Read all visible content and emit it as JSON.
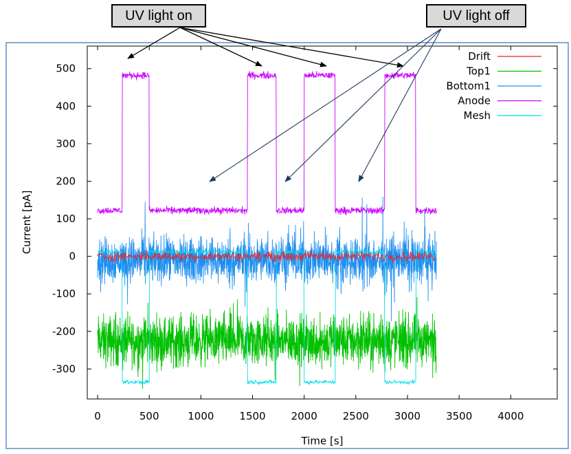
{
  "annotations": {
    "on_label": "UV light on",
    "off_label": "UV light off"
  },
  "chart_data": {
    "type": "line",
    "title": "",
    "xlabel": "Time [s]",
    "ylabel": "Current [pA]",
    "xlim": [
      -100,
      4450
    ],
    "ylim": [
      -380,
      560
    ],
    "xticks": [
      0,
      500,
      1000,
      1500,
      2000,
      2500,
      3000,
      3500,
      4000
    ],
    "yticks": [
      -300,
      -200,
      -100,
      0,
      100,
      200,
      300,
      400,
      500
    ],
    "grid": false,
    "legend_position": "top-right",
    "uv_on_intervals": [
      [
        240,
        500
      ],
      [
        1450,
        1730
      ],
      [
        2000,
        2300
      ],
      [
        2780,
        3080
      ]
    ],
    "series": [
      {
        "name": "Drift",
        "color": "#e8262b",
        "base": 0,
        "on_value": 0,
        "noise": 10,
        "stride": 6
      },
      {
        "name": "Top1",
        "color": "#00c000",
        "base": -225,
        "on_value": -225,
        "noise": 50,
        "stride": 2
      },
      {
        "name": "Bottom1",
        "color": "#1e8ff0",
        "base": -10,
        "on_value": -10,
        "noise": 45,
        "stride": 2
      },
      {
        "name": "Anode",
        "color": "#cc00ff",
        "base": 122,
        "on_value": 482,
        "noise": 7,
        "stride": 3
      },
      {
        "name": "Mesh",
        "color": "#00e0e8",
        "base": 12,
        "on_value": -335,
        "noise": 4,
        "stride": 4
      }
    ],
    "x_end": 3280
  },
  "colors": {
    "axes_border": "#000000",
    "frame": "#5b8ec8",
    "callout_fill": "#d9d9d9",
    "arrow_off": "#1f3a5f",
    "arrow_on": "#000000"
  }
}
